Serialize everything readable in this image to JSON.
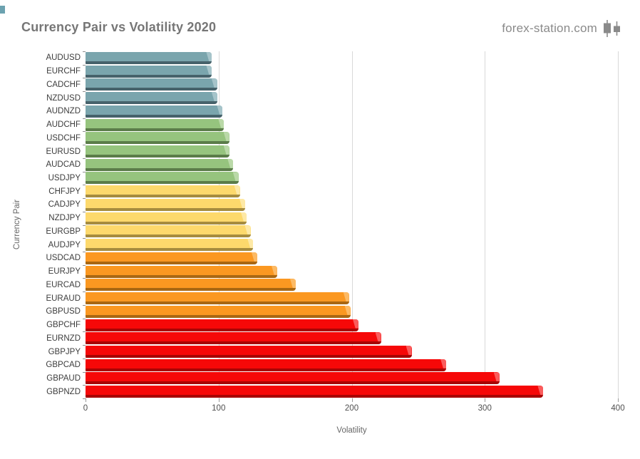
{
  "header": {
    "title": "Currency Pair vs Volatility 2020",
    "brand": "forex-station.com",
    "brand_icon": "candlestick-icon"
  },
  "chart_data": {
    "type": "bar",
    "orientation": "horizontal",
    "title": "Currency Pair vs Volatility 2020",
    "xlabel": "Volatility",
    "ylabel": "Currency Pair",
    "xlim": [
      0,
      400
    ],
    "x_ticks": [
      "0",
      "100",
      "200",
      "300",
      "400"
    ],
    "grid": "vertical major gridlines at 100 intervals",
    "legend": "none",
    "categories": [
      "AUDUSD",
      "EURCHF",
      "CADCHF",
      "NZDUSD",
      "AUDNZD",
      "AUDCHF",
      "USDCHF",
      "EURUSD",
      "AUDCAD",
      "USDJPY",
      "CHFJPY",
      "CADJPY",
      "NZDJPY",
      "EURGBP",
      "AUDJPY",
      "USDCAD",
      "EURJPY",
      "EURCAD",
      "EURAUD",
      "GBPUSD",
      "GBPCHF",
      "EURNZD",
      "GBPJPY",
      "GBPCAD",
      "GBPAUD",
      "GBPNZD"
    ],
    "values": [
      95,
      95,
      99,
      99,
      103,
      104,
      108,
      108,
      111,
      115,
      116,
      120,
      121,
      124,
      126,
      129,
      144,
      158,
      198,
      199,
      205,
      222,
      245,
      271,
      311,
      344
    ],
    "bar_color_group": [
      "teal",
      "teal",
      "teal",
      "teal",
      "teal",
      "green",
      "green",
      "green",
      "green",
      "green",
      "yellow",
      "yellow",
      "yellow",
      "yellow",
      "yellow",
      "orange",
      "orange",
      "orange",
      "orange",
      "orange",
      "red",
      "red",
      "red",
      "red",
      "red",
      "red"
    ]
  },
  "colors": {
    "teal": {
      "main": "#7AA5AD",
      "dark": "#46626B",
      "light": "#A6C4CA"
    },
    "green": {
      "main": "#96C47E",
      "dark": "#5B7C49",
      "light": "#BAD9A8"
    },
    "yellow": {
      "main": "#FDD96C",
      "dark": "#A68C3E",
      "light": "#FEE9A6"
    },
    "orange": {
      "main": "#FB9821",
      "dark": "#A96712",
      "light": "#FCBA65"
    },
    "red": {
      "main": "#F60808",
      "dark": "#A80404",
      "light": "#FA5C5C"
    },
    "title_text": "#767676",
    "brand_text": "#8A8A8A",
    "grid_line": "#D8D8D8",
    "axis_text": "#4F4F4F",
    "corner_mark": "#6CA2B0"
  }
}
